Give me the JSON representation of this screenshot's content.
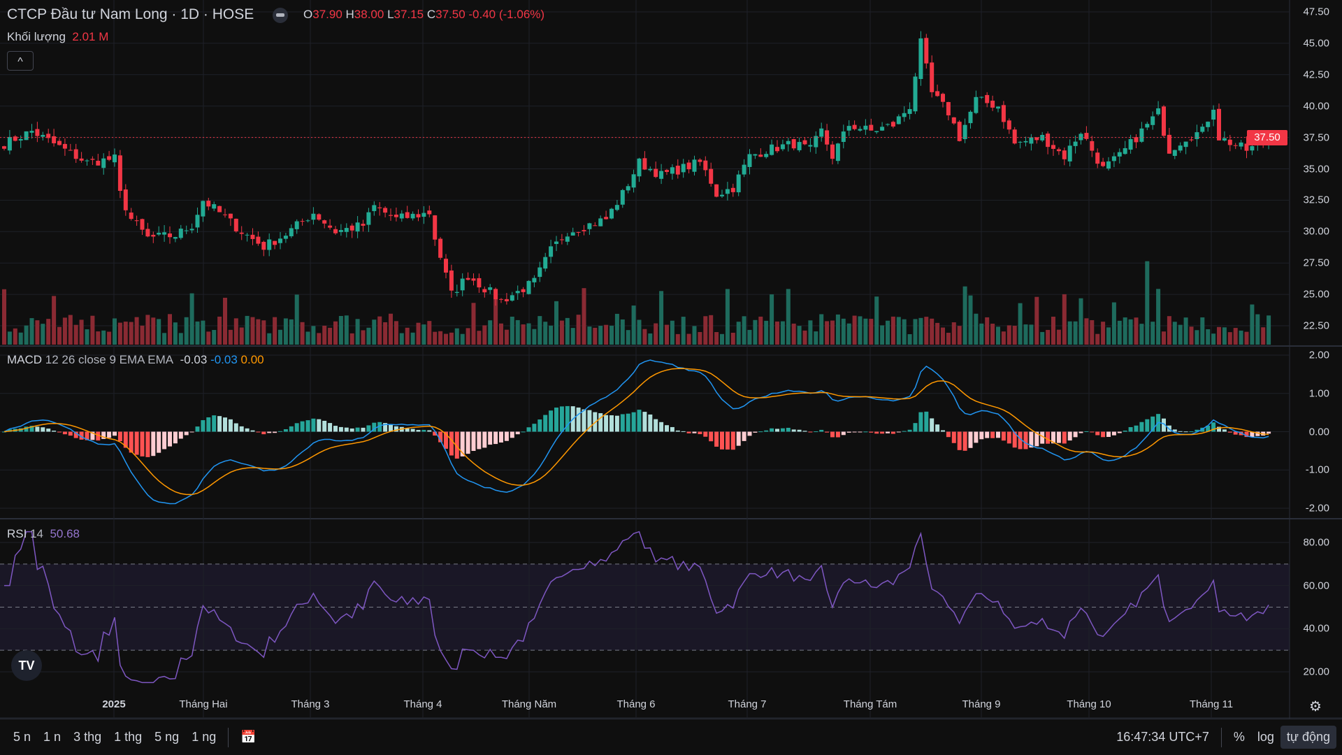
{
  "header": {
    "title": "CTCP Đầu tư Nam Long · 1D · HOSE",
    "o_label": "O",
    "o": "37.90",
    "h_label": "H",
    "h": "38.00",
    "l_label": "L",
    "l": "37.15",
    "c_label": "C",
    "c": "37.50",
    "change": "-0.40 (-1.06%)",
    "volume_label": "Khối lượng",
    "volume": "2.01 M",
    "collapse_icon": "^"
  },
  "price_axis": [
    "47.50",
    "45.00",
    "42.50",
    "40.00",
    "37.50",
    "35.00",
    "32.50",
    "30.00",
    "27.50",
    "25.00",
    "22.50"
  ],
  "last_price": "37.50",
  "macd": {
    "label": "MACD",
    "params": "12 26 close 9 EMA EMA",
    "hist": "-0.03",
    "macd": "-0.03",
    "signal": "0.00",
    "axis": [
      "2.00",
      "1.00",
      "0.00",
      "-1.00",
      "-2.00"
    ]
  },
  "rsi": {
    "label": "RSI",
    "params": "14",
    "value": "50.68",
    "axis": [
      "80.00",
      "60.00",
      "40.00",
      "20.00"
    ]
  },
  "time_axis": [
    "2025",
    "Tháng Hai",
    "Tháng 3",
    "Tháng 4",
    "Tháng Năm",
    "Tháng 6",
    "Tháng 7",
    "Tháng Tám",
    "Tháng 9",
    "Tháng 10",
    "Tháng 11"
  ],
  "toolbar": {
    "ranges": [
      "5 n",
      "1 n",
      "3 thg",
      "1 thg",
      "5 ng",
      "1 ng"
    ],
    "time": "16:47:34 UTC+7",
    "percent": "%",
    "log": "log",
    "auto": "tự động"
  },
  "colors": {
    "up": "#22ab94",
    "down": "#f23645",
    "macd": "#2196f3",
    "signal": "#ff9800",
    "rsi": "#7e57c2"
  },
  "chart_data": {
    "type": "candlestick",
    "bars": 230,
    "waypoints": [
      [
        0,
        37
      ],
      [
        5,
        38
      ],
      [
        11,
        36.5
      ],
      [
        15,
        35.5
      ],
      [
        20,
        35.8
      ],
      [
        21,
        33
      ],
      [
        23,
        31
      ],
      [
        26,
        29.5
      ],
      [
        31,
        29.7
      ],
      [
        34,
        30.5
      ],
      [
        36,
        32.5
      ],
      [
        39,
        31.5
      ],
      [
        43,
        30
      ],
      [
        47,
        28.8
      ],
      [
        51,
        29.8
      ],
      [
        56,
        31.5
      ],
      [
        60,
        30
      ],
      [
        65,
        30.5
      ],
      [
        67,
        32
      ],
      [
        71,
        31
      ],
      [
        77,
        31.5
      ],
      [
        78,
        29.5
      ],
      [
        80,
        26.5
      ],
      [
        81,
        25
      ],
      [
        84,
        26.5
      ],
      [
        87,
        25.5
      ],
      [
        90,
        24.5
      ],
      [
        93,
        25.2
      ],
      [
        96,
        26
      ],
      [
        99,
        28.5
      ],
      [
        102,
        30
      ],
      [
        109,
        31
      ],
      [
        112,
        33
      ],
      [
        115,
        35.5
      ],
      [
        119,
        34.5
      ],
      [
        126,
        35.5
      ],
      [
        128,
        34
      ],
      [
        129,
        33
      ],
      [
        132,
        33.5
      ],
      [
        135,
        36
      ],
      [
        138,
        36.5
      ],
      [
        143,
        37
      ],
      [
        146,
        36.5
      ],
      [
        148,
        38
      ],
      [
        150,
        36
      ],
      [
        153,
        38.5
      ],
      [
        157,
        38
      ],
      [
        161,
        38.5
      ],
      [
        164,
        40
      ],
      [
        166,
        45
      ],
      [
        168,
        41
      ],
      [
        171,
        39.5
      ],
      [
        173,
        37.5
      ],
      [
        176,
        40.5
      ],
      [
        180,
        40
      ],
      [
        183,
        37
      ],
      [
        188,
        37.5
      ],
      [
        192,
        36
      ],
      [
        195,
        38
      ],
      [
        199,
        35
      ],
      [
        202,
        36
      ],
      [
        205,
        37.5
      ],
      [
        209,
        39.5
      ],
      [
        211,
        36.5
      ],
      [
        214,
        37.5
      ],
      [
        217,
        38
      ],
      [
        219,
        40
      ],
      [
        220,
        37.5
      ],
      [
        225,
        36.5
      ],
      [
        228,
        37
      ],
      [
        230,
        37.5
      ]
    ],
    "ylim": [
      21,
      48
    ]
  }
}
